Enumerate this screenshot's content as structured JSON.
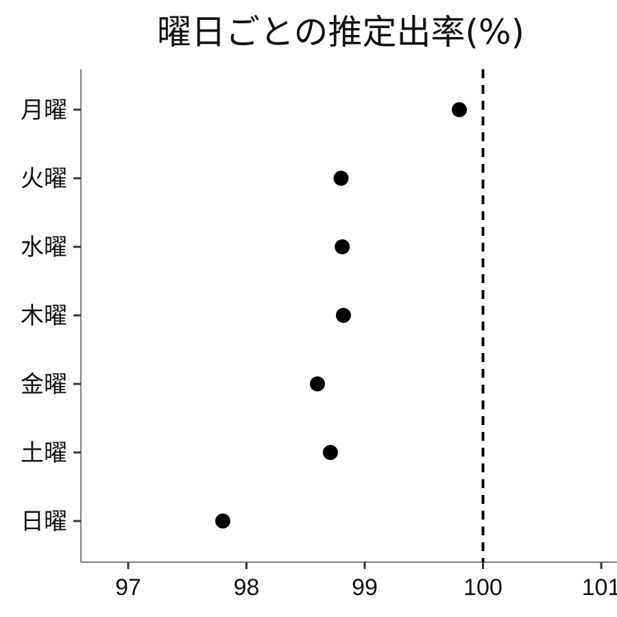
{
  "chart_data": {
    "type": "scatter",
    "title": "曜日ごとの推定出率(%)",
    "xlabel": "",
    "ylabel": "",
    "categories": [
      "月曜",
      "火曜",
      "水曜",
      "木曜",
      "金曜",
      "土曜",
      "日曜"
    ],
    "values": [
      99.8,
      98.8,
      98.81,
      98.82,
      98.6,
      98.71,
      97.8
    ],
    "xlim": [
      96.6,
      101
    ],
    "xticks": [
      "97",
      "98",
      "99",
      "100",
      "101"
    ],
    "reference_line": {
      "x": 100,
      "style": "dashed",
      "color": "#000000"
    },
    "grid": false,
    "legend": "none",
    "point_color": "#000000"
  }
}
